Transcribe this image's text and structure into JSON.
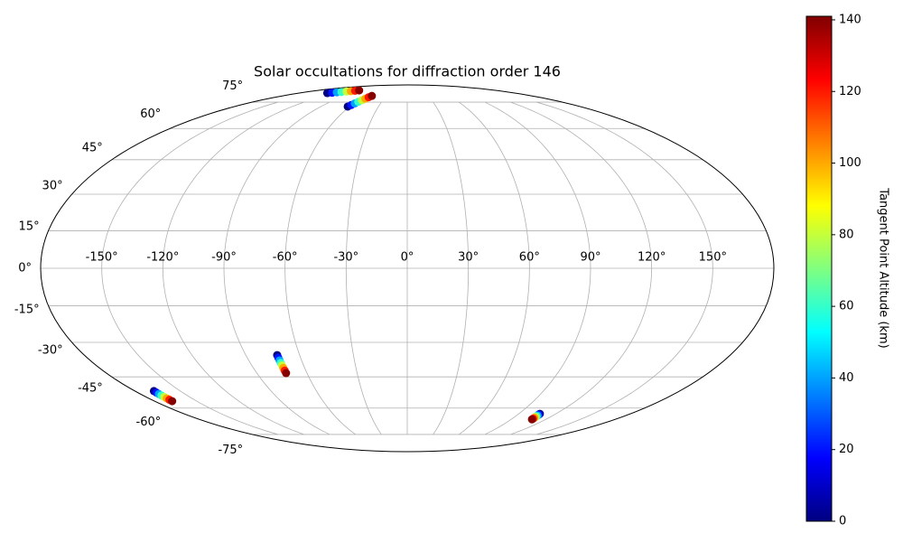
{
  "chart_data": {
    "type": "scatter",
    "projection": "mollweide",
    "title": "Solar occultations for diffraction order 146",
    "xlim": [
      -180,
      180
    ],
    "ylim": [
      -90,
      90
    ],
    "grid": true,
    "xticks": [
      {
        "value": -150,
        "label": "-150°"
      },
      {
        "value": -120,
        "label": "-120°"
      },
      {
        "value": -90,
        "label": "-90°"
      },
      {
        "value": -60,
        "label": "-60°"
      },
      {
        "value": -30,
        "label": "-30°"
      },
      {
        "value": 0,
        "label": "0°"
      },
      {
        "value": 30,
        "label": "30°"
      },
      {
        "value": 60,
        "label": "60°"
      },
      {
        "value": 90,
        "label": "90°"
      },
      {
        "value": 120,
        "label": "120°"
      },
      {
        "value": 150,
        "label": "150°"
      }
    ],
    "yticks": [
      {
        "value": -75,
        "label": "-75°"
      },
      {
        "value": -60,
        "label": "-60°"
      },
      {
        "value": -45,
        "label": "-45°"
      },
      {
        "value": -30,
        "label": "-30°"
      },
      {
        "value": -15,
        "label": "-15°"
      },
      {
        "value": 0,
        "label": "0°"
      },
      {
        "value": 15,
        "label": "15°"
      },
      {
        "value": 30,
        "label": "30°"
      },
      {
        "value": 45,
        "label": "45°"
      },
      {
        "value": 60,
        "label": "60°"
      },
      {
        "value": 75,
        "label": "75°"
      }
    ],
    "colorbar": {
      "label": "Tangent Point Altitude (km)",
      "colormap": "jet",
      "clim": [
        0,
        141
      ],
      "ticks": [
        0,
        20,
        40,
        60,
        80,
        100,
        120,
        140
      ]
    },
    "tracks": [
      {
        "lon": [
          -133,
          -127.9,
          -122.7,
          -117.6,
          -112.4,
          -107.3,
          -102.1,
          -97
        ],
        "lat": [
          81.4,
          81.7,
          82.0,
          82.3,
          82.7,
          83.0,
          83.3,
          83.6
        ],
        "alt": [
          0,
          20,
          40,
          60,
          80,
          100,
          120,
          140
        ]
      },
      {
        "lon": [
          -62,
          -60.4,
          -58.9,
          -57.3,
          -55.7,
          -54.1,
          -52.6,
          -51
        ],
        "lat": [
          72.2,
          73.2,
          74.2,
          75.2,
          76.3,
          77.3,
          78.3,
          79.3
        ],
        "alt": [
          0,
          20,
          40,
          60,
          80,
          100,
          120,
          140
        ]
      },
      {
        "lon": [
          -72.5,
          -72.5,
          -72.5,
          -72.5,
          -72.5,
          -72.5,
          -72.5,
          -72.5
        ],
        "lat": [
          -35.4,
          -36.5,
          -37.7,
          -38.8,
          -39.9,
          -41.0,
          -42.2,
          -43.3
        ],
        "alt": [
          0,
          20,
          40,
          60,
          80,
          100,
          120,
          140
        ]
      },
      {
        "lon": [
          -167.5,
          -167.5,
          -167.5,
          -167.5,
          -167.5,
          -167.5,
          -167.5,
          -167.5
        ],
        "lat": [
          -51.6,
          -52.3,
          -53.0,
          -53.7,
          -54.4,
          -55.1,
          -55.8,
          -56.5
        ],
        "alt": [
          0,
          20,
          40,
          60,
          80,
          100,
          120,
          140
        ]
      },
      {
        "lon": [
          107,
          107.1,
          107.3,
          107.4,
          107.6,
          107.7,
          107.9,
          108
        ],
        "lat": [
          -63.0,
          -63.4,
          -63.9,
          -64.3,
          -64.7,
          -65.1,
          -65.6,
          -66.0
        ],
        "alt": [
          0,
          20,
          40,
          60,
          80,
          100,
          120,
          140
        ]
      }
    ]
  }
}
